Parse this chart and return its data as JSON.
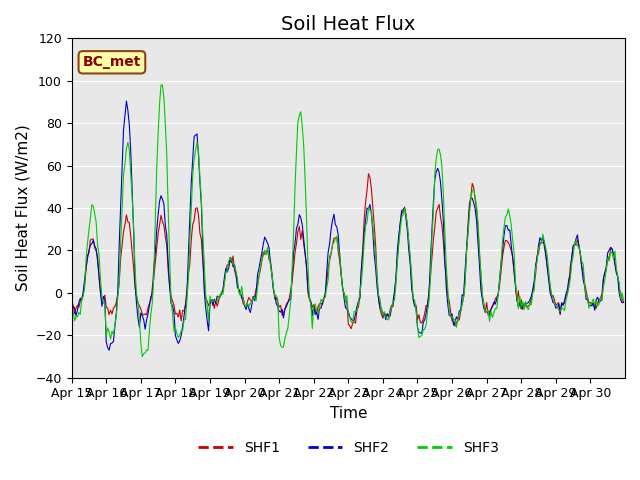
{
  "title": "Soil Heat Flux",
  "ylabel": "Soil Heat Flux (W/m2)",
  "xlabel": "Time",
  "ylim": [
    -40,
    120
  ],
  "yticks": [
    -40,
    -20,
    0,
    20,
    40,
    60,
    80,
    100,
    120
  ],
  "xtick_labels": [
    "Apr 15",
    "Apr 16",
    "Apr 17",
    "Apr 18",
    "Apr 19",
    "Apr 20",
    "Apr 21",
    "Apr 22",
    "Apr 23",
    "Apr 24",
    "Apr 25",
    "Apr 26",
    "Apr 27",
    "Apr 28",
    "Apr 29",
    "Apr 30"
  ],
  "shf1_color": "#cc0000",
  "shf2_color": "#0000cc",
  "shf3_color": "#00cc00",
  "background_color": "#e8e8e8",
  "annotation_text": "BC_met",
  "annotation_facecolor": "#ffffaa",
  "annotation_edgecolor": "#8b4513",
  "title_fontsize": 14,
  "axis_label_fontsize": 11,
  "tick_fontsize": 9,
  "legend_fontsize": 10,
  "n_days": 16
}
